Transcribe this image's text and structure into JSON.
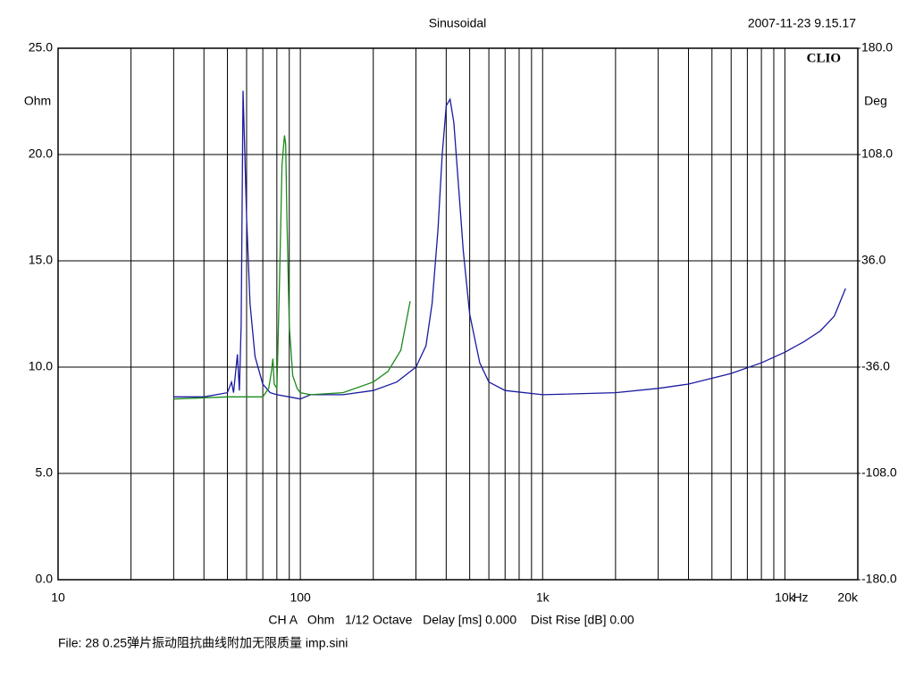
{
  "chart_data": {
    "type": "line",
    "title": "Sinusoidal",
    "timestamp": "2007-11-23 9.15.17",
    "brand": "CLIO",
    "ylabel": "Ohm",
    "y2label": "Deg",
    "xlabel": "Hz",
    "footer": "CH A   Ohm   1/12 Octave   Delay [ms] 0.000    Dist Rise [dB] 0.00",
    "file": "File: 28 0.25弹片振动阻抗曲线附加无限质量 imp.sini",
    "xscale": "log",
    "grid": true,
    "xlim": [
      10,
      20000
    ],
    "xticks": [
      10,
      100,
      {
        "value": 1000,
        "label": "1k"
      },
      {
        "value": 10000,
        "label": "10k"
      },
      {
        "value": 20000,
        "label": "20k"
      }
    ],
    "xgrid": [
      20,
      30,
      40,
      50,
      60,
      70,
      80,
      90,
      200,
      300,
      400,
      500,
      600,
      700,
      800,
      900,
      2000,
      3000,
      4000,
      5000,
      6000,
      7000,
      8000,
      9000
    ],
    "ylim": [
      0,
      25
    ],
    "yticks": [
      {
        "value": 0,
        "label": "0.0"
      },
      {
        "value": 5,
        "label": "5.0"
      },
      {
        "value": 10,
        "label": "10.0"
      },
      {
        "value": 15,
        "label": "15.0"
      },
      {
        "value": 20,
        "label": "20.0"
      },
      {
        "value": 25,
        "label": "25.0"
      }
    ],
    "y2lim": [
      -180,
      180
    ],
    "y2ticks": [
      {
        "value": -180,
        "label": "-180.0"
      },
      {
        "value": -108,
        "label": "-108.0"
      },
      {
        "value": -36,
        "label": "-36.0"
      },
      {
        "value": 36,
        "label": "36.0"
      },
      {
        "value": 108,
        "label": "108.0"
      },
      {
        "value": 180,
        "label": "180.0"
      }
    ],
    "series": [
      {
        "color": "#1a1aa0",
        "x": [
          30,
          40,
          45,
          50,
          52,
          53,
          55,
          56,
          57,
          58,
          60,
          62,
          65,
          70,
          75,
          80,
          90,
          100,
          110,
          150,
          200,
          250,
          300,
          330,
          350,
          370,
          385,
          400,
          415,
          430,
          450,
          470,
          500,
          550,
          600,
          700,
          1000,
          2000,
          3000,
          4000,
          6000,
          8000,
          10000,
          12000,
          14000,
          16000,
          17800
        ],
        "values": [
          8.6,
          8.6,
          8.7,
          8.8,
          9.3,
          8.8,
          10.6,
          8.9,
          12,
          23.0,
          17,
          13,
          10.5,
          9.2,
          8.8,
          8.7,
          8.6,
          8.5,
          8.7,
          8.7,
          8.9,
          9.3,
          10.0,
          11.0,
          13.0,
          16.5,
          20.0,
          22.3,
          22.6,
          21.5,
          18.5,
          15.5,
          12.5,
          10.2,
          9.3,
          8.9,
          8.7,
          8.8,
          9.0,
          9.2,
          9.7,
          10.2,
          10.7,
          11.2,
          11.7,
          12.4,
          13.7
        ]
      },
      {
        "color": "#1a8a1a",
        "x": [
          30,
          50,
          70,
          74,
          76,
          77,
          78,
          80,
          82,
          84,
          86,
          87,
          88,
          90,
          93,
          97,
          100,
          110,
          150,
          200,
          230,
          260,
          284
        ],
        "values": [
          8.5,
          8.6,
          8.6,
          9.0,
          9.8,
          10.4,
          9.2,
          9.0,
          14,
          19.5,
          20.9,
          20.5,
          17,
          12,
          9.6,
          9.0,
          8.8,
          8.7,
          8.8,
          9.3,
          9.8,
          10.8,
          13.1
        ]
      }
    ]
  }
}
